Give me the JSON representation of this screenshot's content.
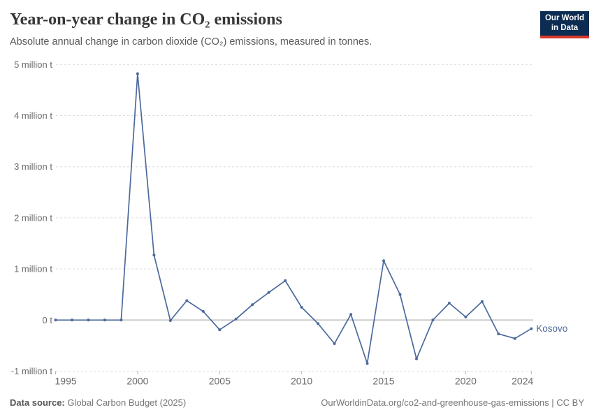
{
  "header": {
    "title": "Year-on-year change in CO₂ emissions",
    "subtitle": "Absolute annual change in carbon dioxide (CO₂) emissions, measured in tonnes.",
    "logo": {
      "line1": "Our World",
      "line2": "in Data",
      "bg_color": "#0d2c52",
      "accent_color": "#d73a2a"
    }
  },
  "chart_data": {
    "type": "line",
    "title": "Year-on-year change in CO₂ emissions",
    "unit": "million tonnes",
    "grid": "horizontal dashed",
    "legend_position": "end-of-line label",
    "xlim": [
      1995,
      2024
    ],
    "ylim": [
      -1,
      5
    ],
    "x": [
      1995,
      1996,
      1997,
      1998,
      1999,
      2000,
      2001,
      2002,
      2003,
      2004,
      2005,
      2006,
      2007,
      2008,
      2009,
      2010,
      2011,
      2012,
      2013,
      2014,
      2015,
      2016,
      2017,
      2018,
      2019,
      2020,
      2021,
      2022,
      2023,
      2024
    ],
    "series": [
      {
        "name": "Kosovo",
        "values": [
          0,
          0,
          0,
          0,
          0,
          4.82,
          1.27,
          -0.01,
          0.38,
          0.17,
          -0.19,
          0.02,
          0.3,
          0.54,
          0.77,
          0.25,
          -0.07,
          -0.46,
          0.11,
          -0.85,
          1.16,
          0.5,
          -0.76,
          0.0,
          0.33,
          0.06,
          0.36,
          -0.27,
          -0.36,
          -0.17
        ]
      }
    ],
    "yticks": [
      {
        "value": 5,
        "label": "5 million t"
      },
      {
        "value": 4,
        "label": "4 million t"
      },
      {
        "value": 3,
        "label": "3 million t"
      },
      {
        "value": 2,
        "label": "2 million t"
      },
      {
        "value": 1,
        "label": "1 million t"
      },
      {
        "value": 0,
        "label": "0 t"
      },
      {
        "value": -1,
        "label": "-1 million t"
      }
    ],
    "xticks": [
      {
        "value": 1995,
        "label": "1995"
      },
      {
        "value": 2000,
        "label": "2000"
      },
      {
        "value": 2005,
        "label": "2005"
      },
      {
        "value": 2010,
        "label": "2010"
      },
      {
        "value": 2015,
        "label": "2015"
      },
      {
        "value": 2020,
        "label": "2020"
      },
      {
        "value": 2024,
        "label": "2024"
      }
    ],
    "line_color": "#4c6a9c"
  },
  "footer": {
    "source_label": "Data source:",
    "source_value": "Global Carbon Budget (2025)",
    "right": "OurWorldinData.org/co2-and-greenhouse-gas-emissions | CC BY"
  }
}
